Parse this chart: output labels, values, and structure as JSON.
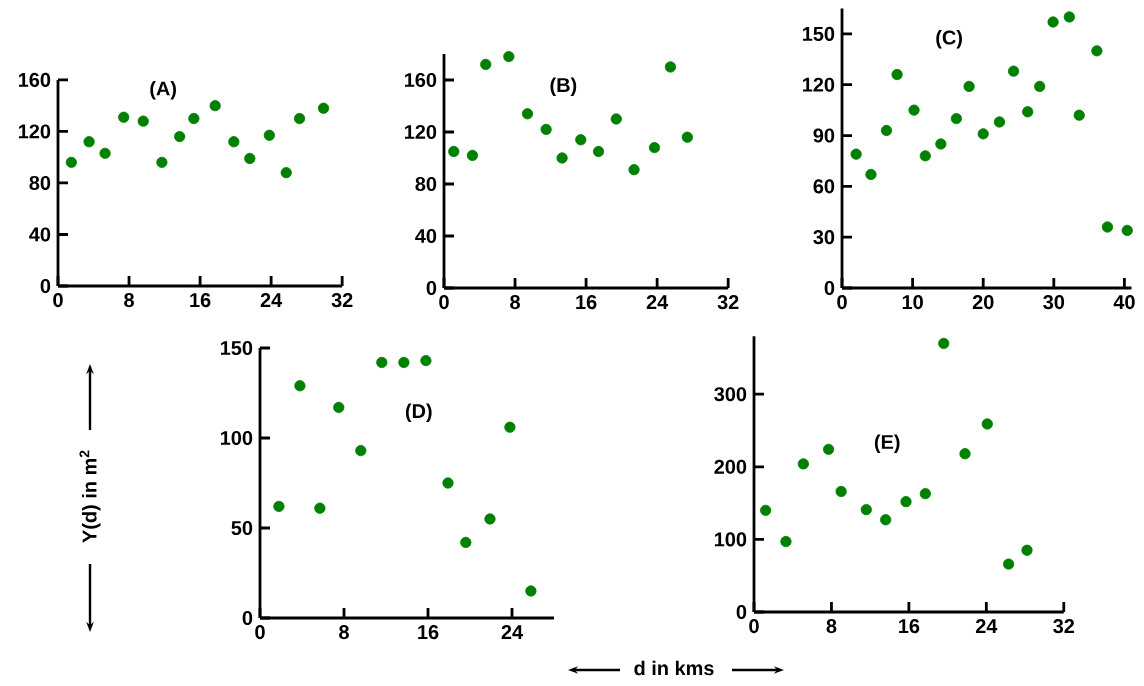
{
  "chart_data": [
    {
      "type": "scatter",
      "title": "(A)",
      "color": "#008000",
      "xlim": [
        0,
        32
      ],
      "ylim": [
        0,
        160
      ],
      "xticks": [
        0,
        8,
        16,
        24,
        32
      ],
      "yticks": [
        0,
        40,
        80,
        120,
        160
      ],
      "x": [
        1.5,
        3.5,
        5.3,
        7.4,
        9.6,
        11.7,
        13.7,
        15.3,
        17.7,
        19.8,
        21.6,
        23.8,
        25.7,
        27.2,
        29.9
      ],
      "values": [
        96,
        112,
        103,
        131,
        128,
        96,
        116,
        130,
        140,
        112,
        99,
        117,
        88,
        130,
        138
      ]
    },
    {
      "type": "scatter",
      "title": "(B)",
      "color": "#008000",
      "xlim": [
        0,
        32
      ],
      "ylim": [
        0,
        180
      ],
      "xticks": [
        0,
        8,
        16,
        24,
        32
      ],
      "yticks": [
        0,
        40,
        80,
        120,
        160
      ],
      "x": [
        1.1,
        3.2,
        4.7,
        7.3,
        9.4,
        11.5,
        13.3,
        15.4,
        17.4,
        19.4,
        21.4,
        23.7,
        25.5,
        27.4
      ],
      "values": [
        105,
        102,
        172,
        178,
        134,
        122,
        100,
        114,
        105,
        130,
        91,
        108,
        170,
        116
      ]
    },
    {
      "type": "scatter",
      "title": "(C)",
      "color": "#008000",
      "xlim": [
        0,
        41
      ],
      "ylim": [
        0,
        165
      ],
      "xticks": [
        0,
        10,
        20,
        30,
        40
      ],
      "yticks": [
        0,
        30,
        60,
        90,
        120,
        150
      ],
      "x": [
        2.0,
        4.1,
        6.3,
        7.8,
        10.2,
        11.8,
        14.0,
        16.2,
        18.0,
        20.0,
        22.3,
        24.3,
        26.3,
        28.0,
        29.9,
        32.2,
        33.6,
        36.1,
        37.6,
        40.4
      ],
      "values": [
        79,
        67,
        93,
        126,
        105,
        78,
        85,
        100,
        119,
        91,
        98,
        128,
        104,
        119,
        157,
        160,
        102,
        140,
        36,
        34
      ]
    },
    {
      "type": "scatter",
      "title": "(D)",
      "ylabel": "Υ(d) in m$^{2}$",
      "color": "#008000",
      "xlim": [
        0,
        28
      ],
      "ylim": [
        0,
        150
      ],
      "xticks": [
        0,
        8,
        16,
        24
      ],
      "yticks": [
        0,
        50,
        100,
        150
      ],
      "x": [
        1.8,
        3.8,
        5.7,
        7.5,
        9.6,
        11.6,
        13.7,
        15.8,
        17.9,
        19.6,
        21.9,
        23.8,
        25.8
      ],
      "values": [
        62,
        129,
        61,
        117,
        93,
        142,
        142,
        143,
        75,
        42,
        55,
        106,
        15
      ]
    },
    {
      "type": "scatter",
      "title": "(E)",
      "xlabel": "d in kms",
      "color": "#008000",
      "xlim": [
        0,
        32
      ],
      "ylim": [
        0,
        380
      ],
      "xticks": [
        0,
        8,
        16,
        24,
        32
      ],
      "yticks": [
        0,
        100,
        200,
        300
      ],
      "x": [
        1.2,
        3.3,
        5.1,
        7.7,
        9.0,
        11.6,
        13.6,
        15.7,
        17.7,
        19.6,
        21.8,
        24.1,
        26.3,
        28.2
      ],
      "values": [
        140,
        97,
        204,
        224,
        166,
        141,
        127,
        152,
        163,
        370,
        218,
        259,
        66,
        85
      ]
    }
  ]
}
